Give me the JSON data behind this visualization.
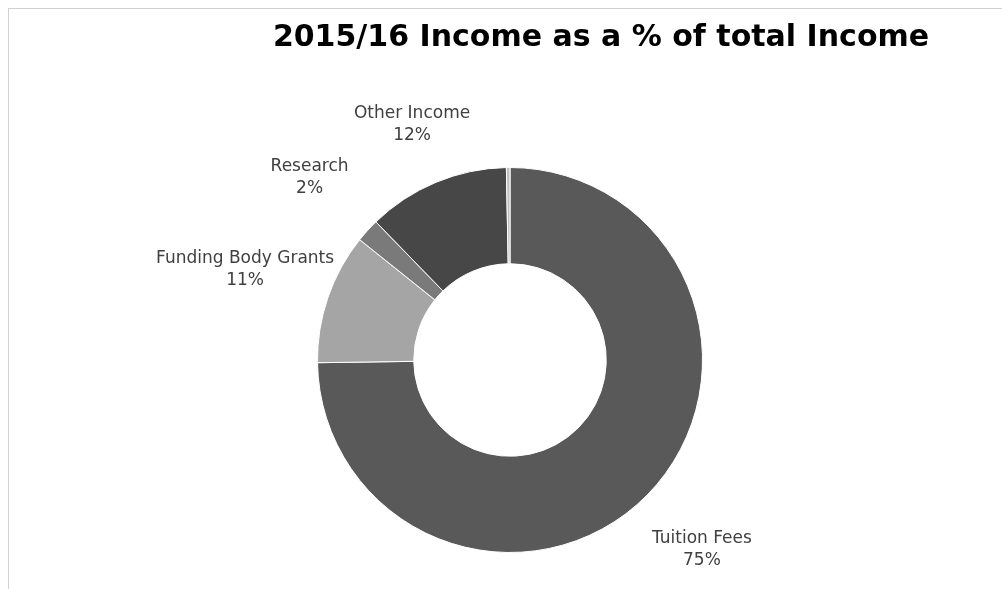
{
  "chart_data": {
    "type": "donut",
    "title": "2015/16 Income as a % of total Income",
    "categories": [
      "Tuition Fees",
      "Funding Body Grants",
      "Research",
      "Other Income",
      null
    ],
    "values": [
      75,
      11,
      2,
      12,
      0.3
    ],
    "colors": [
      "#595959",
      "#a5a5a5",
      "#7a7a7a",
      "#474747",
      "#bfbfbf"
    ],
    "value_labels": [
      "75%",
      "11%",
      "2%",
      "12%",
      null
    ],
    "legend": false
  }
}
